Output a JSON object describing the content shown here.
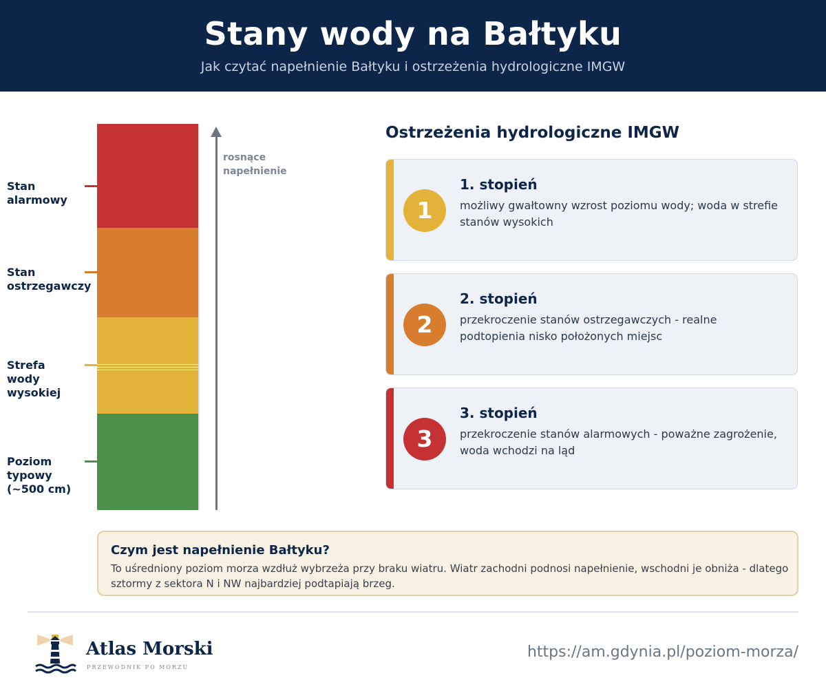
{
  "header": {
    "title": "Stany wody na Bałtyku",
    "subtitle": "Jak czytać napełnienie Bałtyku i ostrzeżenia hydrologiczne IMGW"
  },
  "gauge": {
    "levels": [
      {
        "label_line1": "Stan",
        "label_line2": "alarmowy",
        "label_line3": "",
        "color": "#c53234"
      },
      {
        "label_line1": "Stan",
        "label_line2": "ostrzegawczy",
        "label_line3": "",
        "color": "#d77d2d"
      },
      {
        "label_line1": "Strefa",
        "label_line2": "wody",
        "label_line3": "wysokiej",
        "color": "#e3b238"
      },
      {
        "label_line1": "Poziom",
        "label_line2": "typowy",
        "label_line3": "(~500 cm)",
        "color": "#4a8f4a"
      }
    ],
    "arrow_line1": "rosnące",
    "arrow_line2": "napełnienie"
  },
  "warnings": {
    "title": "Ostrzeżenia hydrologiczne IMGW",
    "items": [
      {
        "number": "1",
        "title": "1. stopień",
        "description": "możliwy gwałtowny wzrost poziomu wody; woda w strefie stanów wysokich",
        "color": "#e3b238"
      },
      {
        "number": "2",
        "title": "2. stopień",
        "description": "przekroczenie stanów ostrzegawczych - realne podtopienia nisko położonych miejsc",
        "color": "#d77d2d"
      },
      {
        "number": "3",
        "title": "3. stopień",
        "description": "przekroczenie stanów alarmowych - poważne zagrożenie, woda wchodzi na ląd",
        "color": "#c53234"
      }
    ]
  },
  "info": {
    "title": "Czym jest napełnienie Bałtyku?",
    "text": "To uśredniony poziom morza wzdłuż wybrzeża przy braku wiatru. Wiatr zachodni podnosi napełnienie, wschodni je obniża - dlatego sztormy z sektora N i NW najbardziej podtapiają brzeg."
  },
  "footer": {
    "brand": "Atlas Morski",
    "tagline": "PRZEWODNIK PO MORZU",
    "url": "https://am.gdynia.pl/poziom-morza/",
    "logo_icon": "lighthouse-icon"
  }
}
